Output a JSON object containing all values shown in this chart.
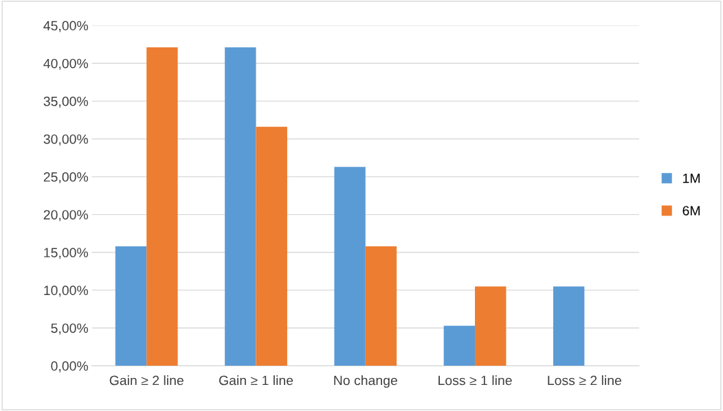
{
  "chart_data": {
    "type": "bar",
    "categories": [
      "Gain ≥ 2 line",
      "Gain ≥ 1 line",
      "No change",
      "Loss ≥ 1 line",
      "Loss ≥ 2 line"
    ],
    "series": [
      {
        "name": "1M",
        "color": "#5b9bd5",
        "values": [
          15.8,
          42.1,
          26.3,
          5.3,
          10.5
        ]
      },
      {
        "name": "6M",
        "color": "#ed7d31",
        "values": [
          42.1,
          31.6,
          15.8,
          10.5,
          0
        ]
      }
    ],
    "ylim": [
      0,
      45
    ],
    "yticks": [
      {
        "value": 0,
        "label": "0,00%"
      },
      {
        "value": 5,
        "label": "5,00%"
      },
      {
        "value": 10,
        "label": "10,00%"
      },
      {
        "value": 15,
        "label": "15,00%"
      },
      {
        "value": 20,
        "label": "20,00%"
      },
      {
        "value": 25,
        "label": "25,00%"
      },
      {
        "value": 30,
        "label": "30,00%"
      },
      {
        "value": 35,
        "label": "35,00%"
      },
      {
        "value": 40,
        "label": "40,00%"
      },
      {
        "value": 45,
        "label": "45,00%"
      }
    ],
    "grid": "y",
    "legend": "right"
  }
}
